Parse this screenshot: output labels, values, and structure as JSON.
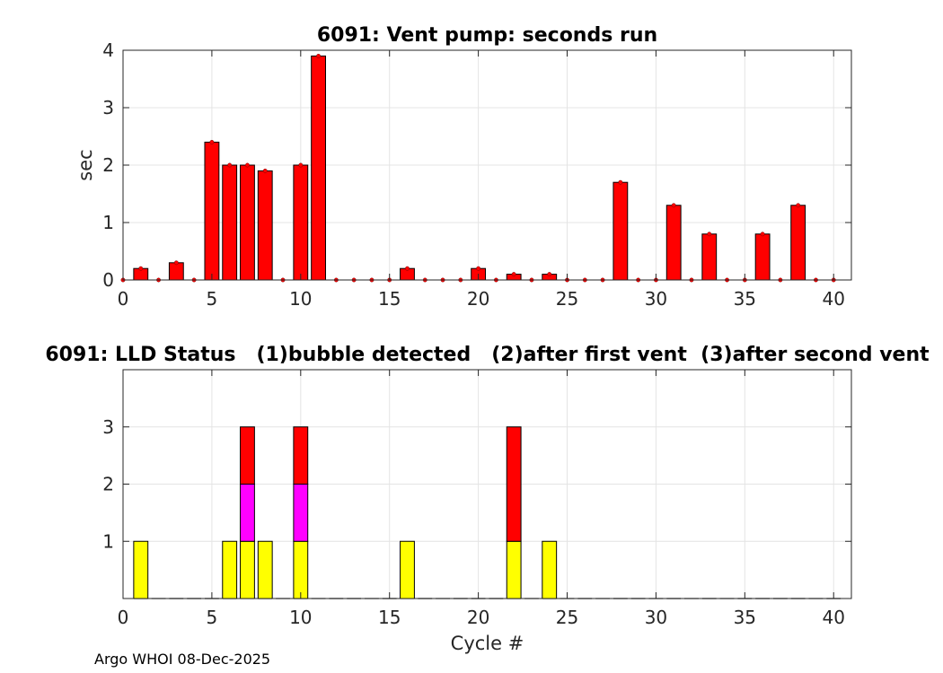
{
  "chart_data": [
    {
      "type": "bar",
      "title": "6091: Vent pump: seconds run",
      "xlabel": "",
      "ylabel": "sec",
      "xlim": [
        0,
        41
      ],
      "ylim": [
        0,
        4
      ],
      "xticks": [
        0,
        5,
        10,
        15,
        20,
        25,
        30,
        35,
        40
      ],
      "yticks": [
        0,
        1,
        2,
        3,
        4
      ],
      "grid": true,
      "colors": {
        "bar": "#ff0000",
        "edge": "#000000",
        "marker": "#ff0000"
      },
      "x": [
        0,
        1,
        2,
        3,
        4,
        5,
        6,
        7,
        8,
        9,
        10,
        11,
        12,
        13,
        14,
        15,
        16,
        17,
        18,
        19,
        20,
        21,
        22,
        23,
        24,
        25,
        26,
        27,
        28,
        29,
        30,
        31,
        32,
        33,
        34,
        35,
        36,
        37,
        38,
        39,
        40
      ],
      "values": [
        0,
        0.2,
        0,
        0.3,
        0,
        2.4,
        2.0,
        2.0,
        1.9,
        0,
        2.0,
        3.9,
        0,
        0,
        0,
        0,
        0.2,
        0,
        0,
        0,
        0.2,
        0,
        0.1,
        0,
        0.1,
        0,
        0,
        0,
        1.7,
        0,
        0,
        1.3,
        0,
        0.8,
        0,
        0,
        0.8,
        0,
        1.3,
        0,
        0
      ]
    },
    {
      "type": "bar",
      "stacked": true,
      "title": "6091: LLD Status   (1)bubble detected   (2)after first vent  (3)after second vent",
      "xlabel": "Cycle #",
      "ylabel": "",
      "xlim": [
        0,
        41
      ],
      "ylim": [
        0,
        4
      ],
      "xticks": [
        0,
        5,
        10,
        15,
        20,
        25,
        30,
        35,
        40
      ],
      "yticks": [
        1,
        2,
        3
      ],
      "grid": true,
      "x": [
        1,
        2,
        3,
        4,
        5,
        6,
        7,
        8,
        9,
        10,
        11,
        12,
        13,
        14,
        15,
        16,
        17,
        18,
        19,
        20,
        21,
        22,
        23,
        24,
        25,
        26,
        27,
        28,
        29,
        30,
        31,
        32,
        33,
        34,
        35,
        36,
        37,
        38,
        39,
        40
      ],
      "series": [
        {
          "name": "(1)bubble detected",
          "color": "#ffff00",
          "values": [
            1,
            0,
            0,
            0,
            0,
            1,
            1,
            1,
            0,
            1,
            0,
            0,
            0,
            0,
            0,
            1,
            0,
            0,
            0,
            0,
            0,
            1,
            0,
            1,
            0,
            0,
            0,
            0,
            0,
            0,
            0,
            0,
            0,
            0,
            0,
            0,
            0,
            0,
            0,
            0
          ]
        },
        {
          "name": "(2)after first vent",
          "color": "#ff00ff",
          "values": [
            0,
            0,
            0,
            0,
            0,
            0,
            1,
            0,
            0,
            1,
            0,
            0,
            0,
            0,
            0,
            0,
            0,
            0,
            0,
            0,
            0,
            0,
            0,
            0,
            0,
            0,
            0,
            0,
            0,
            0,
            0,
            0,
            0,
            0,
            0,
            0,
            0,
            0,
            0,
            0
          ]
        },
        {
          "name": "(3)after second vent",
          "color": "#ff0000",
          "values": [
            0,
            0,
            0,
            0,
            0,
            0,
            1,
            0,
            0,
            1,
            0,
            0,
            0,
            0,
            0,
            0,
            0,
            0,
            0,
            0,
            0,
            2,
            0,
            0,
            0,
            0,
            0,
            0,
            0,
            0,
            0,
            0,
            0,
            0,
            0,
            0,
            0,
            0,
            0,
            0
          ]
        }
      ]
    }
  ],
  "footer": "Argo WHOI 08-Dec-2025"
}
